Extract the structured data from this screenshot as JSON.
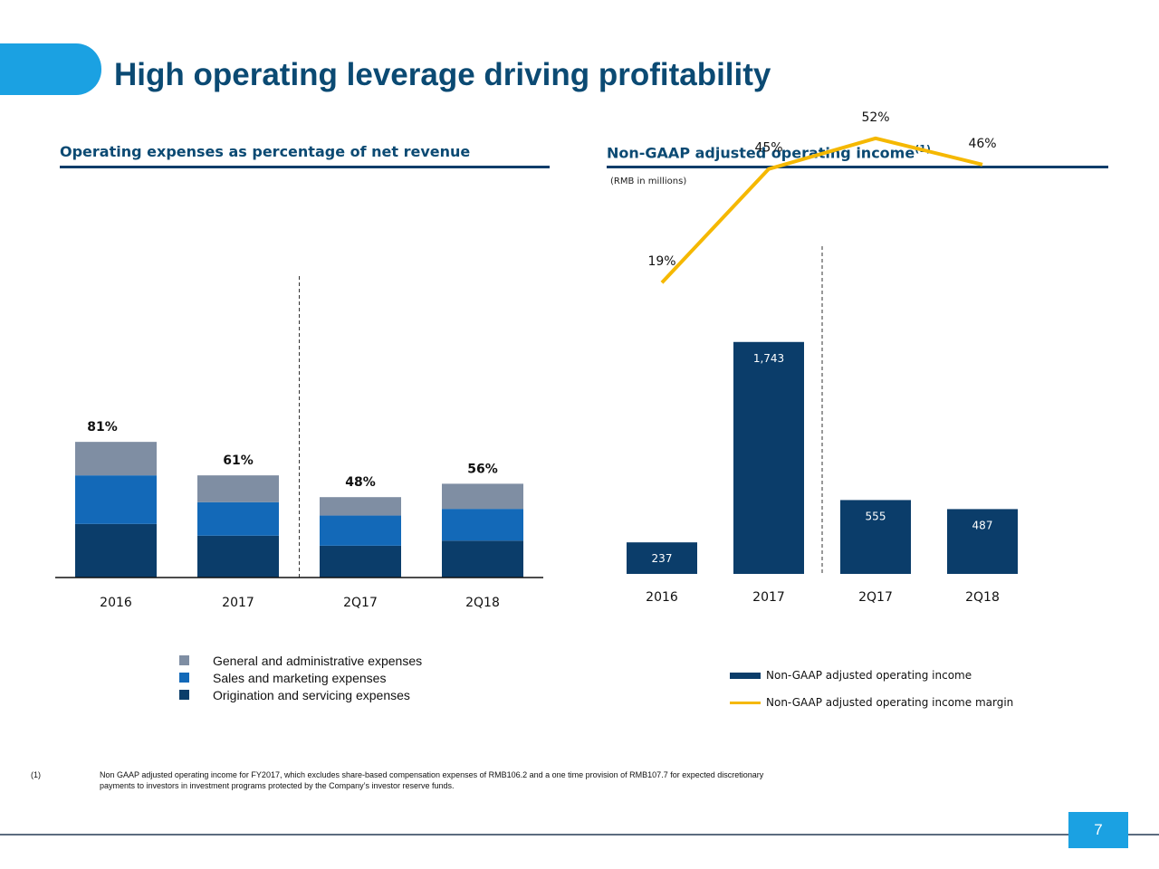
{
  "title": "High operating leverage driving profitability",
  "page_number": "7",
  "colors": {
    "accent": "#1ba1e2",
    "title": "#0b4a73",
    "dark_navy": "#0b3d6a",
    "gray": "#7f8ea3",
    "blue": "#1369b8",
    "yellow": "#f5b800"
  },
  "chart_data": [
    {
      "type": "bar",
      "stacked": true,
      "title": "Operating expenses as percentage of net revenue",
      "categories": [
        "2016",
        "2017",
        "2Q17",
        "2Q18"
      ],
      "totals": [
        "81%",
        "61%",
        "48%",
        "56%"
      ],
      "total_values": [
        81,
        61,
        48,
        56
      ],
      "series": [
        {
          "name": "Origination and servicing expenses",
          "values": [
            32,
            25,
            19,
            22
          ],
          "color": "#0b3d6a"
        },
        {
          "name": "Sales and marketing expenses",
          "values": [
            29,
            20,
            18,
            19
          ],
          "color": "#1369b8"
        },
        {
          "name": "General and administrative expenses",
          "values": [
            20,
            16,
            11,
            15
          ],
          "color": "#7f8ea3"
        }
      ],
      "divider_after_index": 1,
      "legend_position": "bottom"
    },
    {
      "type": "bar",
      "title": "Non-GAAP adjusted operating income",
      "title_sup": "(1)",
      "units_note": "(RMB in millions)",
      "categories": [
        "2016",
        "2017",
        "2Q17",
        "2Q18"
      ],
      "series": [
        {
          "name": "Non-GAAP adjusted operating income",
          "values": [
            237,
            1743,
            555,
            487
          ],
          "labels": [
            "237",
            "1,743",
            "555",
            "487"
          ],
          "color": "#0b3d6a"
        }
      ],
      "line_series": {
        "name": "Non-GAAP adjusted operating income margin",
        "values": [
          19,
          45,
          52,
          46
        ],
        "labels": [
          "19%",
          "45%",
          "52%",
          "46%"
        ],
        "color": "#f5b800"
      },
      "divider_after_index": 1,
      "legend_position": "bottom-right"
    }
  ],
  "footnote": {
    "mark": "(1)",
    "line1": "Non GAAP adjusted operating income for FY2017, which excludes share-based compensation expenses of RMB106.2 and a one time provision of RMB107.7 for expected discretionary",
    "line2": "payments to investors in investment programs protected by the Company’s investor reserve funds."
  }
}
